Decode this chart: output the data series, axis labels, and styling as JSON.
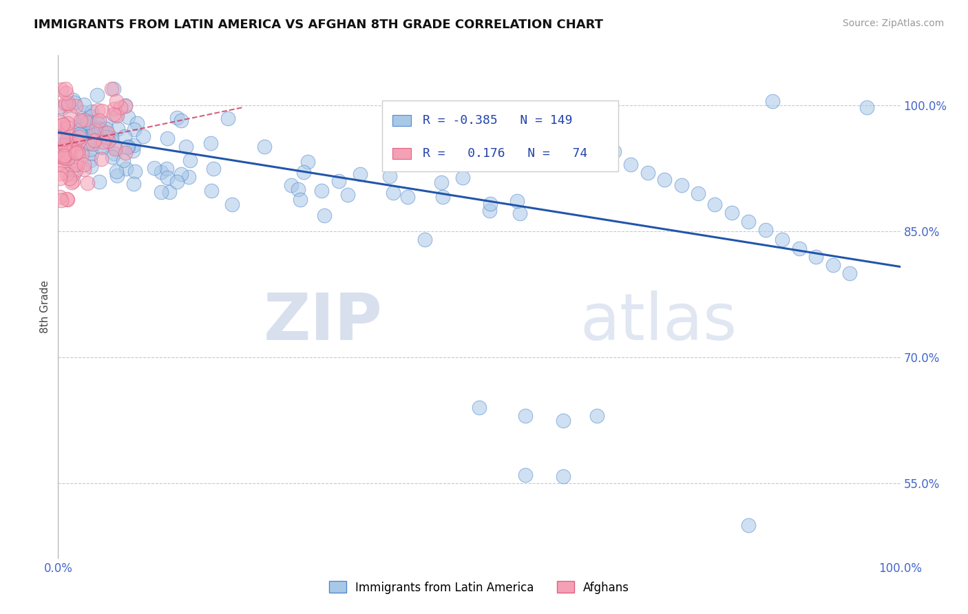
{
  "title": "IMMIGRANTS FROM LATIN AMERICA VS AFGHAN 8TH GRADE CORRELATION CHART",
  "source_text": "Source: ZipAtlas.com",
  "ylabel": "8th Grade",
  "xlim": [
    0.0,
    1.0
  ],
  "ylim": [
    0.46,
    1.06
  ],
  "blue_color": "#a8c8e8",
  "blue_edge_color": "#5588cc",
  "pink_color": "#f4a0b5",
  "pink_edge_color": "#e06080",
  "trend_blue_color": "#2255aa",
  "trend_pink_color": "#cc4466",
  "legend_R_blue": "-0.385",
  "legend_N_blue": "149",
  "legend_R_pink": "0.176",
  "legend_N_pink": "74",
  "legend_label_blue": "Immigrants from Latin America",
  "legend_label_pink": "Afghans",
  "watermark_zip": "ZIP",
  "watermark_atlas": "atlas",
  "background_color": "#ffffff",
  "grid_color": "#c8c8c8",
  "blue_trend_x0": 0.0,
  "blue_trend_y0": 0.968,
  "blue_trend_x1": 1.0,
  "blue_trend_y1": 0.808,
  "pink_trend_x0": 0.0,
  "pink_trend_y0": 0.952,
  "pink_trend_x1": 0.22,
  "pink_trend_y1": 0.998
}
